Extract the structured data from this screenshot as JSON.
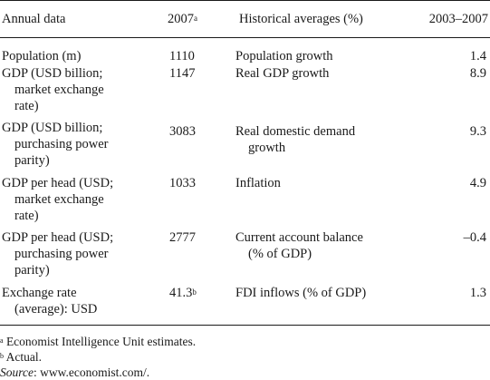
{
  "header": {
    "annual_data": "Annual data",
    "year": "2007",
    "year_note": "a",
    "historical": "Historical averages (%)",
    "range": "2003–2007"
  },
  "rows": [
    {
      "label": [
        "Population (m)"
      ],
      "value": "1110",
      "value_note": "",
      "hist": [
        "Population growth"
      ],
      "hist_value": "1.4"
    },
    {
      "label": [
        "GDP (USD billion;",
        "market exchange",
        "rate)"
      ],
      "value": "1147",
      "value_note": "",
      "hist": [
        "Real GDP growth"
      ],
      "hist_value": "8.9"
    },
    {
      "label": [
        "GDP (USD billion;",
        "purchasing power",
        "parity)"
      ],
      "value": "3083",
      "value_note": "",
      "hist": [
        "Real domestic demand",
        "growth"
      ],
      "hist_value": "9.3"
    },
    {
      "label": [
        "GDP per head (USD;",
        "market exchange",
        "rate)"
      ],
      "value": "1033",
      "value_note": "",
      "hist": [
        "Inflation"
      ],
      "hist_value": "4.9"
    },
    {
      "label": [
        "GDP per head (USD;",
        "purchasing power",
        "parity)"
      ],
      "value": "2777",
      "value_note": "",
      "hist": [
        "Current account balance",
        "(% of GDP)"
      ],
      "hist_value": "–0.4"
    },
    {
      "label": [
        "Exchange rate",
        "(average): USD"
      ],
      "value": "41.3",
      "value_note": "b",
      "hist": [
        "FDI inflows (% of GDP)"
      ],
      "hist_value": "1.3"
    }
  ],
  "footnotes": {
    "a_mark": "a",
    "a_text": " Economist Intelligence Unit estimates.",
    "b_mark": "b",
    "b_text": " Actual.",
    "source_label": "Source",
    "source_text": ": www.economist.com/."
  }
}
